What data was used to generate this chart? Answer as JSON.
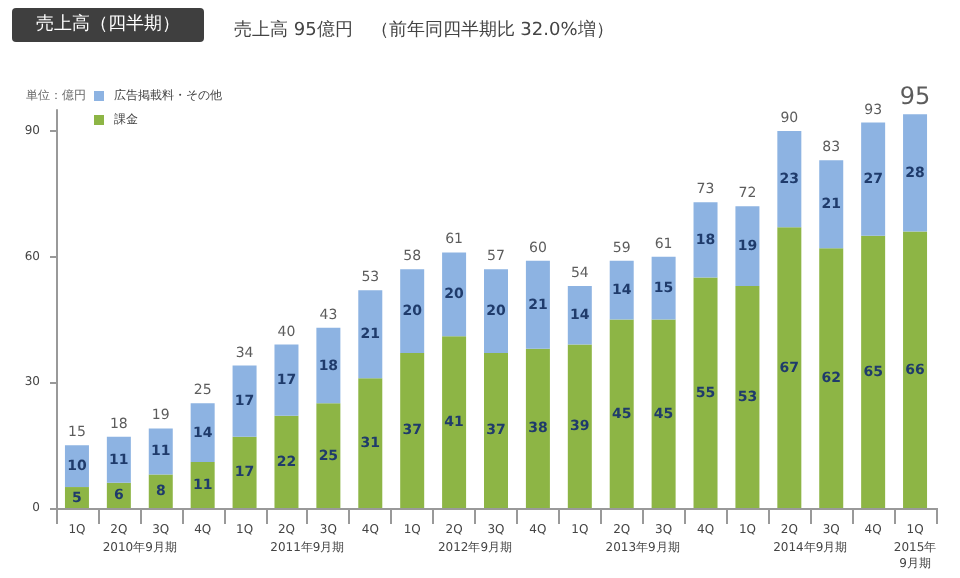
{
  "chart_data": {
    "type": "bar",
    "title": "売上高（四半期）",
    "subtitle": "売上高 95億円　（前年同四半期比 32.0%増）",
    "ylabel": "単位：億円",
    "categories": [
      "1Q",
      "2Q",
      "3Q",
      "4Q",
      "1Q",
      "2Q",
      "3Q",
      "4Q",
      "1Q",
      "2Q",
      "3Q",
      "4Q",
      "1Q",
      "2Q",
      "3Q",
      "4Q",
      "1Q",
      "2Q",
      "3Q",
      "4Q",
      "1Q"
    ],
    "stacked": true,
    "series": [
      {
        "name": "課金",
        "color": "#8db545",
        "values": [
          5,
          6,
          8,
          11,
          17,
          22,
          25,
          31,
          37,
          41,
          37,
          38,
          39,
          45,
          45,
          55,
          53,
          67,
          62,
          65,
          66
        ]
      },
      {
        "name": "広告掲載料・その他",
        "color": "#8db3e2",
        "values": [
          10,
          11,
          11,
          14,
          17,
          17,
          18,
          21,
          20,
          20,
          20,
          21,
          14,
          14,
          15,
          18,
          19,
          23,
          21,
          27,
          28
        ]
      }
    ],
    "totals": [
      "15",
      "18",
      "19",
      "25",
      "34",
      "40",
      "43",
      "53",
      "58",
      "61",
      "57",
      "60",
      "54",
      "59",
      "61",
      "73",
      "72",
      "90",
      "83",
      "93",
      "95"
    ],
    "annotations": [
      "2010年9月期",
      "2011年9月期",
      "2012年9月期",
      "2013年9月期",
      "2014年9月期",
      "2015年\n9月期"
    ],
    "data_labels": true,
    "ylim": [
      0,
      95
    ],
    "yticks": [
      0,
      30,
      60,
      90
    ],
    "grid": false,
    "legend": "top left"
  }
}
